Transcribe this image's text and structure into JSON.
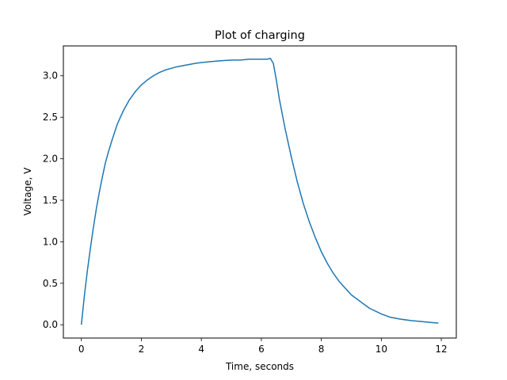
{
  "chart_data": {
    "type": "line",
    "title": "Plot of charging",
    "xlabel": "Time, seconds",
    "ylabel": "Voltage, V",
    "xlim": [
      -0.6,
      12.5
    ],
    "ylim": [
      -0.16,
      3.36
    ],
    "xticks": [
      0,
      2,
      4,
      6,
      8,
      10,
      12
    ],
    "yticks": [
      0.0,
      0.5,
      1.0,
      1.5,
      2.0,
      2.5,
      3.0
    ],
    "xtick_labels": [
      "0",
      "2",
      "4",
      "6",
      "8",
      "10",
      "12"
    ],
    "ytick_labels": [
      "0.0",
      "0.5",
      "1.0",
      "1.5",
      "2.0",
      "2.5",
      "3.0"
    ],
    "grid": false,
    "series": [
      {
        "color": "#1f77b4",
        "x": [
          0,
          0.1,
          0.2,
          0.3,
          0.4,
          0.5,
          0.6,
          0.7,
          0.8,
          0.9,
          1.0,
          1.2,
          1.4,
          1.6,
          1.8,
          2.0,
          2.2,
          2.4,
          2.6,
          2.8,
          3.0,
          3.2,
          3.5,
          3.8,
          4.0,
          4.3,
          4.6,
          5.0,
          5.3,
          5.6,
          6.0,
          6.2,
          6.3,
          6.4,
          6.5,
          6.6,
          6.8,
          7.0,
          7.2,
          7.4,
          7.6,
          7.8,
          8.0,
          8.2,
          8.4,
          8.6,
          8.8,
          9.0,
          9.3,
          9.6,
          10.0,
          10.3,
          10.6,
          11.0,
          11.3,
          11.6,
          11.9
        ],
        "y": [
          0.0,
          0.35,
          0.65,
          0.92,
          1.17,
          1.4,
          1.6,
          1.78,
          1.95,
          2.08,
          2.2,
          2.42,
          2.58,
          2.71,
          2.81,
          2.89,
          2.95,
          3.0,
          3.04,
          3.07,
          3.09,
          3.11,
          3.13,
          3.15,
          3.16,
          3.17,
          3.18,
          3.19,
          3.19,
          3.2,
          3.2,
          3.2,
          3.21,
          3.15,
          2.95,
          2.72,
          2.35,
          2.02,
          1.72,
          1.46,
          1.24,
          1.05,
          0.88,
          0.74,
          0.62,
          0.52,
          0.44,
          0.36,
          0.28,
          0.2,
          0.13,
          0.09,
          0.07,
          0.05,
          0.04,
          0.03,
          0.02
        ]
      }
    ]
  }
}
